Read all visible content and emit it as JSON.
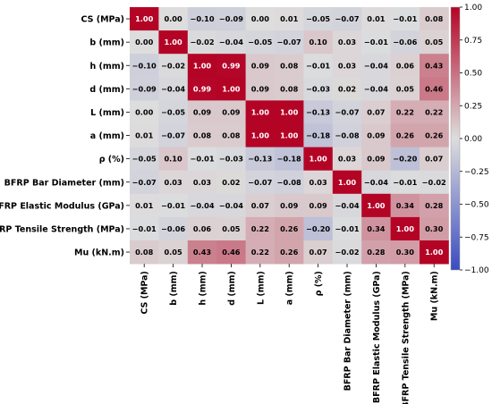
{
  "chart_data": {
    "type": "heatmap",
    "labels": [
      "CS (MPa)",
      "b (mm)",
      "h (mm)",
      "d (mm)",
      "L (mm)",
      "a (mm)",
      "ρ (%)",
      "BFRP Bar Diameter (mm)",
      "BFRP Elastic Modulus (GPa)",
      "BFRP Tensile Strength (MPa)",
      "Mu (kN.m)"
    ],
    "values": [
      [
        1.0,
        0.0,
        -0.1,
        -0.09,
        0.0,
        0.01,
        -0.05,
        -0.07,
        0.01,
        -0.01,
        0.08
      ],
      [
        0.0,
        1.0,
        -0.02,
        -0.04,
        -0.05,
        -0.07,
        0.1,
        0.03,
        -0.01,
        -0.06,
        0.05
      ],
      [
        -0.1,
        -0.02,
        1.0,
        0.99,
        0.09,
        0.08,
        -0.01,
        0.03,
        -0.04,
        0.06,
        0.43
      ],
      [
        -0.09,
        -0.04,
        0.99,
        1.0,
        0.09,
        0.08,
        -0.03,
        0.02,
        -0.04,
        0.05,
        0.46
      ],
      [
        0.0,
        -0.05,
        0.09,
        0.09,
        1.0,
        1.0,
        -0.13,
        -0.07,
        0.07,
        0.22,
        0.22
      ],
      [
        0.01,
        -0.07,
        0.08,
        0.08,
        1.0,
        1.0,
        -0.18,
        -0.08,
        0.09,
        0.26,
        0.26
      ],
      [
        -0.05,
        0.1,
        -0.01,
        -0.03,
        -0.13,
        -0.18,
        1.0,
        0.03,
        0.09,
        -0.2,
        0.07
      ],
      [
        -0.07,
        0.03,
        0.03,
        0.02,
        -0.07,
        -0.08,
        0.03,
        1.0,
        -0.04,
        -0.01,
        -0.02
      ],
      [
        0.01,
        -0.01,
        -0.04,
        -0.04,
        0.07,
        0.09,
        0.09,
        -0.04,
        1.0,
        0.34,
        0.28
      ],
      [
        -0.01,
        -0.06,
        0.06,
        0.05,
        0.22,
        0.26,
        -0.2,
        -0.01,
        0.34,
        1.0,
        0.3
      ],
      [
        0.08,
        0.05,
        0.43,
        0.46,
        0.22,
        0.26,
        0.07,
        -0.02,
        0.28,
        0.3,
        1.0
      ]
    ],
    "value_format": "0.00",
    "vmin": -1.0,
    "vmax": 1.0,
    "colormap": "coolwarm",
    "colormap_stops": [
      "#3b4cc0",
      "#dddddd",
      "#b40426"
    ],
    "colorbar": {
      "position": "right",
      "ticks": [
        1.0,
        0.75,
        0.5,
        0.25,
        0.0,
        -0.25,
        -0.5,
        -0.75,
        -1.0
      ],
      "tick_labels": [
        "1.00",
        "0.75",
        "0.50",
        "0.25",
        "0.00",
        "−0.25",
        "−0.50",
        "−0.75",
        "−1.00"
      ]
    },
    "title": "",
    "grid": false
  }
}
